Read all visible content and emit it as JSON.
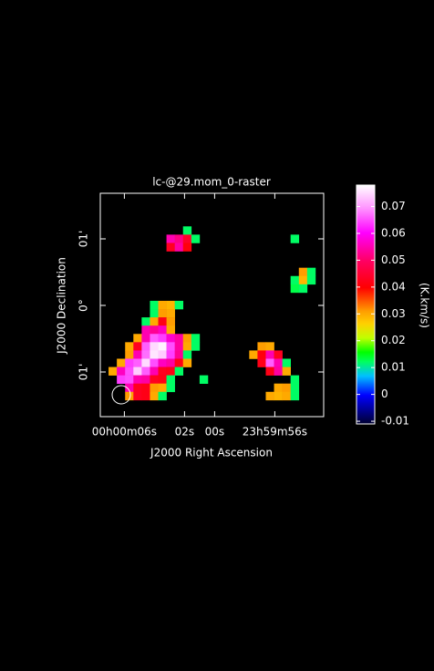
{
  "chart_data": {
    "type": "heatmap",
    "title": "lc-@29.mom_0-raster",
    "x_label": "J2000 Right Ascension",
    "y_label": "J2000 Declination",
    "colorbar_label": "(K.km/s)",
    "xlim": [
      7.6,
      -7.25
    ],
    "ylim": [
      -1.671,
      1.685
    ],
    "xticks": [
      {
        "value": 6,
        "label": "00h00m06s"
      },
      {
        "value": 2,
        "label": "02s"
      },
      {
        "value": 0,
        "label": "00s"
      },
      {
        "value": -4,
        "label": "23h59m56s"
      }
    ],
    "yticks": [
      {
        "value": 1,
        "label": "01'"
      },
      {
        "value": 0,
        "label": "0°"
      },
      {
        "value": -1,
        "label": "01'"
      }
    ],
    "clim": [
      -0.011,
      0.078
    ],
    "cticks": [
      0.07,
      0.06,
      0.05,
      0.04,
      0.03,
      0.02,
      0.01,
      0,
      -0.01
    ],
    "z": [
      [
        null,
        null,
        null,
        null,
        null,
        null,
        null,
        null,
        null,
        null,
        null,
        null,
        null,
        null,
        null,
        null,
        null,
        null,
        null,
        null,
        null,
        null,
        null,
        null,
        null,
        null,
        null
      ],
      [
        null,
        null,
        null,
        null,
        null,
        null,
        null,
        null,
        null,
        null,
        null,
        null,
        null,
        null,
        null,
        null,
        null,
        null,
        null,
        null,
        null,
        null,
        null,
        null,
        null,
        null,
        null
      ],
      [
        null,
        null,
        null,
        null,
        null,
        null,
        null,
        null,
        null,
        null,
        null,
        null,
        null,
        null,
        null,
        null,
        null,
        null,
        null,
        null,
        null,
        null,
        null,
        null,
        null,
        null,
        null
      ],
      [
        null,
        null,
        null,
        null,
        null,
        null,
        null,
        null,
        null,
        null,
        null,
        null,
        null,
        null,
        null,
        null,
        null,
        null,
        null,
        null,
        null,
        null,
        null,
        null,
        null,
        null,
        null
      ],
      [
        null,
        null,
        null,
        null,
        null,
        null,
        null,
        null,
        null,
        null,
        0.012,
        null,
        null,
        null,
        null,
        null,
        null,
        null,
        null,
        null,
        null,
        null,
        null,
        null,
        null,
        null,
        null
      ],
      [
        null,
        null,
        null,
        null,
        null,
        null,
        null,
        null,
        0.055,
        0.052,
        0.044,
        0.012,
        null,
        null,
        null,
        null,
        null,
        null,
        null,
        null,
        null,
        null,
        null,
        0.012,
        null,
        null,
        null
      ],
      [
        null,
        null,
        null,
        null,
        null,
        null,
        null,
        null,
        0.043,
        0.054,
        0.041,
        null,
        null,
        null,
        null,
        null,
        null,
        null,
        null,
        null,
        null,
        null,
        null,
        null,
        null,
        null,
        null
      ],
      [
        null,
        null,
        null,
        null,
        null,
        null,
        null,
        null,
        null,
        null,
        null,
        null,
        null,
        null,
        null,
        null,
        null,
        null,
        null,
        null,
        null,
        null,
        null,
        null,
        null,
        null,
        null
      ],
      [
        null,
        null,
        null,
        null,
        null,
        null,
        null,
        null,
        null,
        null,
        null,
        null,
        null,
        null,
        null,
        null,
        null,
        null,
        null,
        null,
        null,
        null,
        null,
        null,
        null,
        null,
        null
      ],
      [
        null,
        null,
        null,
        null,
        null,
        null,
        null,
        null,
        null,
        null,
        null,
        null,
        null,
        null,
        null,
        null,
        null,
        null,
        null,
        null,
        null,
        null,
        null,
        null,
        0.031,
        0.012,
        null
      ],
      [
        null,
        null,
        null,
        null,
        null,
        null,
        null,
        null,
        null,
        null,
        null,
        null,
        null,
        null,
        null,
        null,
        null,
        null,
        null,
        null,
        null,
        null,
        null,
        0.012,
        0.029,
        0.012,
        null
      ],
      [
        null,
        null,
        null,
        null,
        null,
        null,
        null,
        null,
        null,
        null,
        null,
        null,
        null,
        null,
        null,
        null,
        null,
        null,
        null,
        null,
        null,
        null,
        null,
        0.013,
        0.012,
        null,
        null
      ],
      [
        null,
        null,
        null,
        null,
        null,
        null,
        null,
        null,
        null,
        null,
        null,
        null,
        null,
        null,
        null,
        null,
        null,
        null,
        null,
        null,
        null,
        null,
        null,
        null,
        null,
        null,
        null
      ],
      [
        null,
        null,
        null,
        null,
        null,
        null,
        0.012,
        0.03,
        0.029,
        0.012,
        null,
        null,
        null,
        null,
        null,
        null,
        null,
        null,
        null,
        null,
        null,
        null,
        null,
        null,
        null,
        null,
        null
      ],
      [
        null,
        null,
        null,
        null,
        null,
        null,
        0.012,
        0.031,
        0.03,
        null,
        null,
        null,
        null,
        null,
        null,
        null,
        null,
        null,
        null,
        null,
        null,
        null,
        null,
        null,
        null,
        null,
        null
      ],
      [
        null,
        null,
        null,
        null,
        null,
        0.012,
        0.03,
        0.042,
        0.031,
        null,
        null,
        null,
        null,
        null,
        null,
        null,
        null,
        null,
        null,
        null,
        null,
        null,
        null,
        null,
        null,
        null,
        null
      ],
      [
        null,
        null,
        null,
        null,
        null,
        0.055,
        0.053,
        0.056,
        0.03,
        null,
        null,
        null,
        null,
        null,
        null,
        null,
        null,
        null,
        null,
        null,
        null,
        null,
        null,
        null,
        null,
        null,
        null
      ],
      [
        null,
        null,
        null,
        null,
        0.03,
        0.055,
        0.066,
        0.064,
        0.057,
        0.054,
        0.031,
        0.012,
        null,
        null,
        null,
        null,
        null,
        null,
        null,
        null,
        null,
        null,
        null,
        null,
        null,
        null,
        null
      ],
      [
        null,
        null,
        null,
        0.03,
        0.043,
        0.066,
        0.075,
        0.077,
        0.065,
        0.054,
        0.03,
        0.012,
        null,
        null,
        null,
        null,
        null,
        null,
        null,
        0.031,
        0.03,
        null,
        null,
        null,
        null,
        null,
        null
      ],
      [
        null,
        null,
        null,
        0.031,
        0.055,
        0.067,
        0.076,
        0.074,
        0.064,
        0.053,
        0.012,
        null,
        null,
        null,
        null,
        null,
        null,
        null,
        0.03,
        0.041,
        0.055,
        0.043,
        null,
        null,
        null,
        null,
        null
      ],
      [
        null,
        null,
        0.03,
        0.064,
        0.066,
        0.075,
        0.065,
        0.056,
        0.054,
        0.042,
        0.03,
        null,
        null,
        null,
        null,
        null,
        null,
        null,
        null,
        0.042,
        0.066,
        0.055,
        0.012,
        null,
        null,
        null,
        null
      ],
      [
        null,
        0.03,
        0.056,
        0.065,
        0.074,
        0.066,
        0.055,
        0.043,
        0.042,
        0.012,
        null,
        null,
        null,
        null,
        null,
        null,
        null,
        null,
        null,
        null,
        0.042,
        0.054,
        0.03,
        null,
        null,
        null,
        null
      ],
      [
        null,
        null,
        0.064,
        0.065,
        0.055,
        0.054,
        0.043,
        0.042,
        0.012,
        null,
        null,
        null,
        0.012,
        null,
        null,
        null,
        null,
        null,
        null,
        null,
        null,
        null,
        null,
        0.012,
        null,
        null,
        null
      ],
      [
        null,
        null,
        null,
        0.055,
        0.043,
        0.042,
        0.031,
        0.03,
        0.012,
        null,
        null,
        null,
        null,
        null,
        null,
        null,
        null,
        null,
        null,
        null,
        null,
        0.03,
        0.031,
        0.012,
        null,
        null,
        null
      ],
      [
        null,
        null,
        null,
        0.031,
        0.043,
        0.042,
        0.03,
        0.012,
        null,
        null,
        null,
        null,
        null,
        null,
        null,
        null,
        null,
        null,
        null,
        null,
        0.03,
        0.029,
        0.03,
        0.012,
        null,
        null,
        null
      ],
      [
        null,
        null,
        null,
        null,
        null,
        null,
        null,
        null,
        null,
        null,
        null,
        null,
        null,
        null,
        null,
        null,
        null,
        null,
        null,
        null,
        null,
        null,
        null,
        null,
        null,
        null,
        null
      ],
      [
        null,
        null,
        null,
        null,
        null,
        null,
        null,
        null,
        null,
        null,
        null,
        null,
        null,
        null,
        null,
        null,
        null,
        null,
        null,
        null,
        null,
        null,
        null,
        null,
        null,
        null,
        null
      ]
    ]
  }
}
